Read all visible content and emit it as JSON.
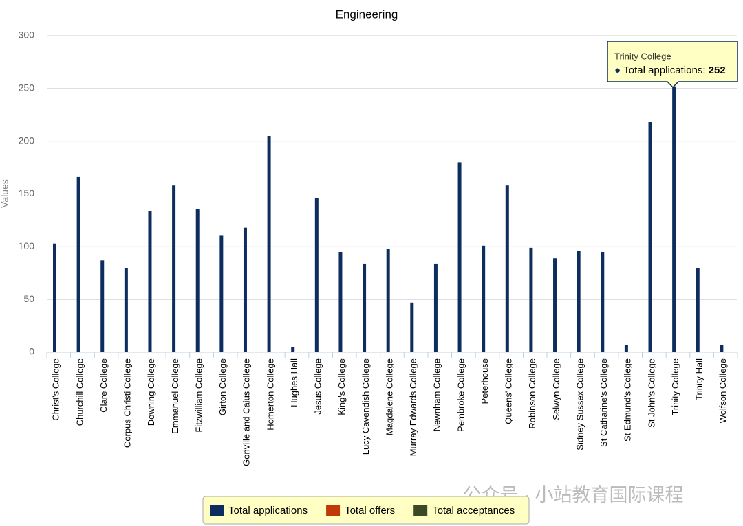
{
  "chart_data": {
    "type": "bar",
    "title": "Engineering",
    "y_label": "Values",
    "categories": [
      "Christ's College",
      "Churchill College",
      "Clare College",
      "Corpus Christi College",
      "Downing College",
      "Emmanuel College",
      "Fitzwilliam College",
      "Girton College",
      "Gonville and Caius College",
      "Homerton College",
      "Hughes Hall",
      "Jesus College",
      "King's College",
      "Lucy Cavendish College",
      "Magdalene College",
      "Murray Edwards College",
      "Newnham College",
      "Pembroke College",
      "Peterhouse",
      "Queens' College",
      "Robinson College",
      "Selwyn College",
      "Sidney Sussex College",
      "St Catharine's College",
      "St Edmund's College",
      "St John's College",
      "Trinity College",
      "Trinity Hall",
      "Wolfson College"
    ],
    "series": [
      {
        "name": "Total applications",
        "color": "#0d2d5e",
        "values": [
          103,
          166,
          87,
          80,
          134,
          158,
          136,
          111,
          118,
          205,
          5,
          146,
          95,
          84,
          98,
          47,
          84,
          180,
          101,
          158,
          99,
          89,
          96,
          95,
          7,
          218,
          252,
          80,
          7
        ]
      },
      {
        "name": "Total offers",
        "color": "#c0390a"
      },
      {
        "name": "Total acceptances",
        "color": "#3b4a24"
      }
    ],
    "ylim": [
      0,
      300
    ],
    "yticks": [
      0,
      50,
      100,
      150,
      200,
      250,
      300
    ],
    "grid": true,
    "legend": "bottom",
    "tooltip": {
      "series": 0,
      "index": 26
    },
    "watermark": "公众号 · 小站教育国际课程"
  }
}
